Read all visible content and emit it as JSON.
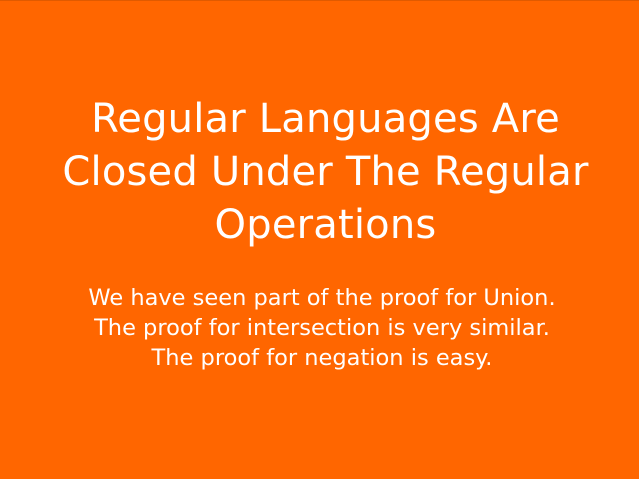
{
  "slide": {
    "title": "Regular Languages Are Closed Under The Regular Operations",
    "body": "We have seen part of the proof for Union. The proof for intersection is very similar. The proof for negation is easy.",
    "background_color": "#ff6600",
    "text_color": "#ffffff"
  }
}
